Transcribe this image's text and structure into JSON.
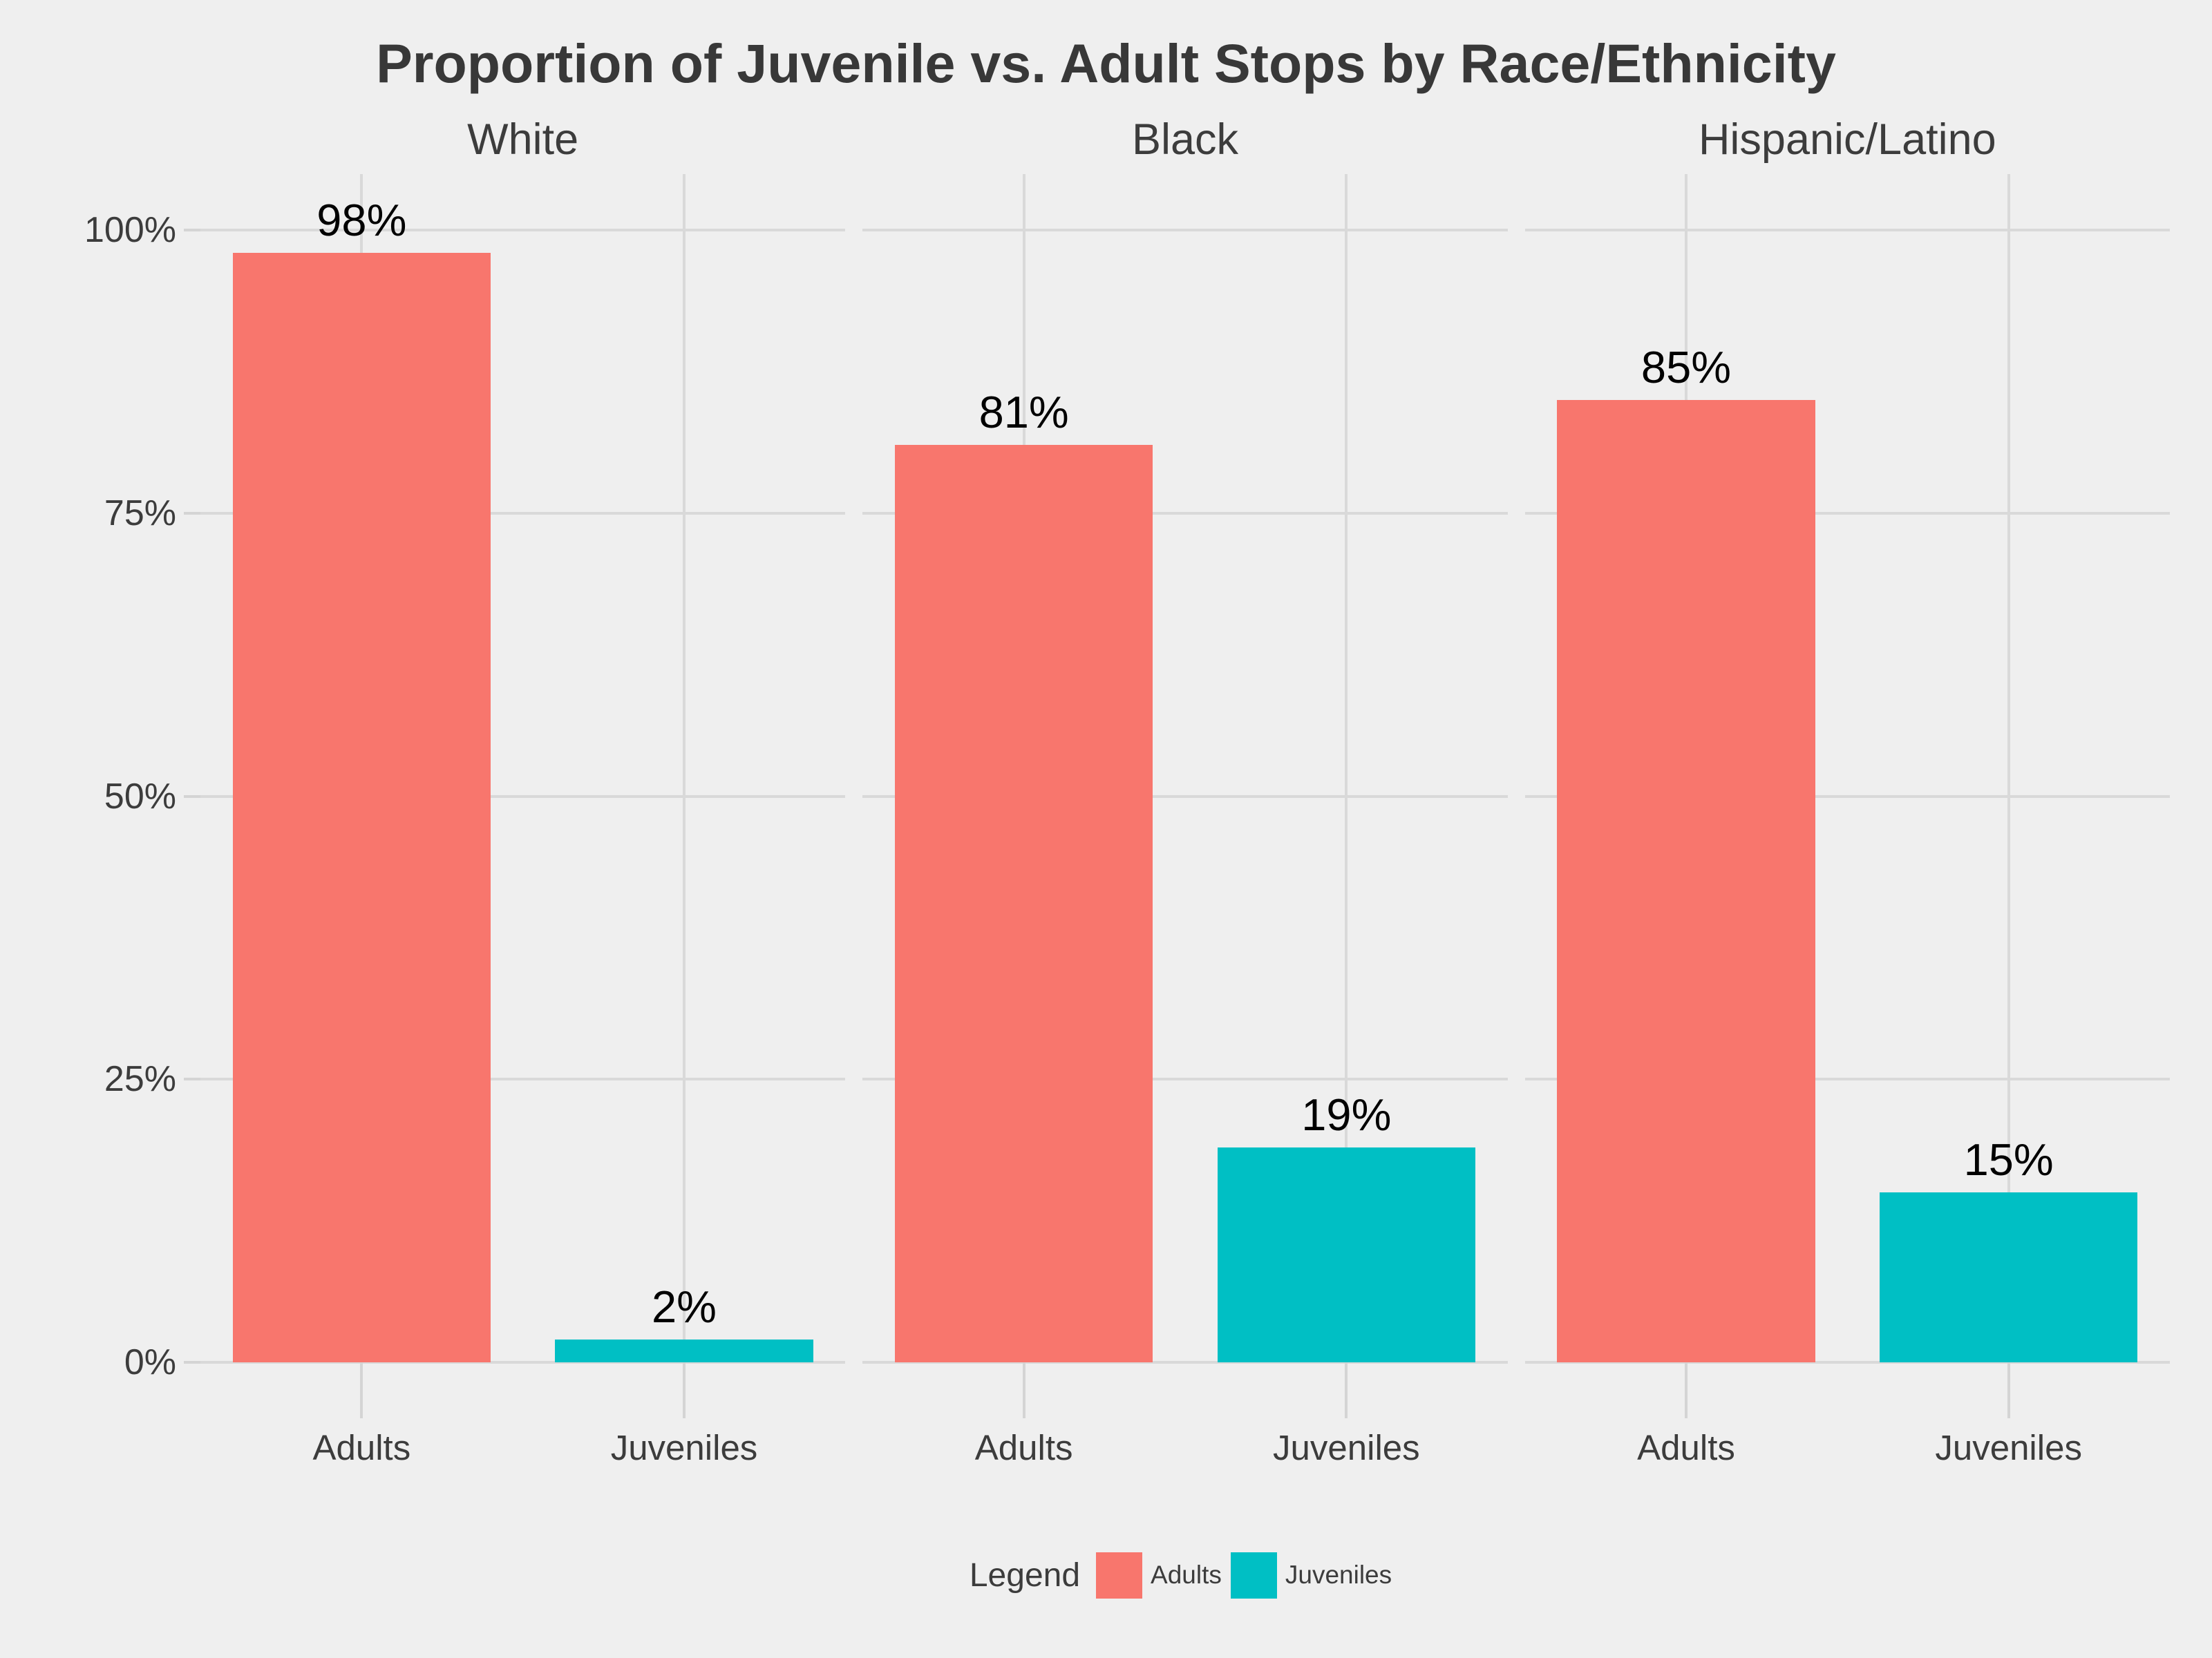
{
  "title": "Proportion of Juvenile vs. Adult Stops by Race/Ethnicity",
  "legend": {
    "title": "Legend",
    "items": [
      {
        "label": "Adults",
        "color": "#F8766D"
      },
      {
        "label": "Juveniles",
        "color": "#00BFC4"
      }
    ]
  },
  "y_axis": {
    "tick_labels": [
      "0%",
      "25%",
      "50%",
      "75%",
      "100%"
    ],
    "tick_values": [
      0,
      25,
      50,
      75,
      100
    ]
  },
  "chart_data": {
    "type": "bar",
    "title": "Proportion of Juvenile vs. Adult Stops by Race/Ethnicity",
    "facets": [
      {
        "label": "White",
        "categories": [
          "Adults",
          "Juveniles"
        ],
        "values": [
          98,
          2
        ],
        "value_labels": [
          "98%",
          "2%"
        ]
      },
      {
        "label": "Black",
        "categories": [
          "Adults",
          "Juveniles"
        ],
        "values": [
          81,
          19
        ],
        "value_labels": [
          "81%",
          "19%"
        ]
      },
      {
        "label": "Hispanic/Latino",
        "categories": [
          "Adults",
          "Juveniles"
        ],
        "values": [
          85,
          15
        ],
        "value_labels": [
          "85%",
          "15%"
        ]
      }
    ],
    "series": [
      {
        "name": "Adults",
        "color": "#F8766D"
      },
      {
        "name": "Juveniles",
        "color": "#00BFC4"
      }
    ],
    "xlabel": "",
    "ylabel": "",
    "ylim": [
      0,
      105
    ],
    "grid": true,
    "legend_position": "bottom",
    "legend_title": "Legend"
  },
  "colors": {
    "background": "#EFEFEF",
    "gridline": "#D9D9D9",
    "axis_text": "#3C3C3C",
    "strip_text": "#3C3C3C",
    "title_text": "#383838",
    "value_label_text": "#000000",
    "adults_bar": "#F8766D",
    "juveniles_bar": "#00BFC4"
  }
}
